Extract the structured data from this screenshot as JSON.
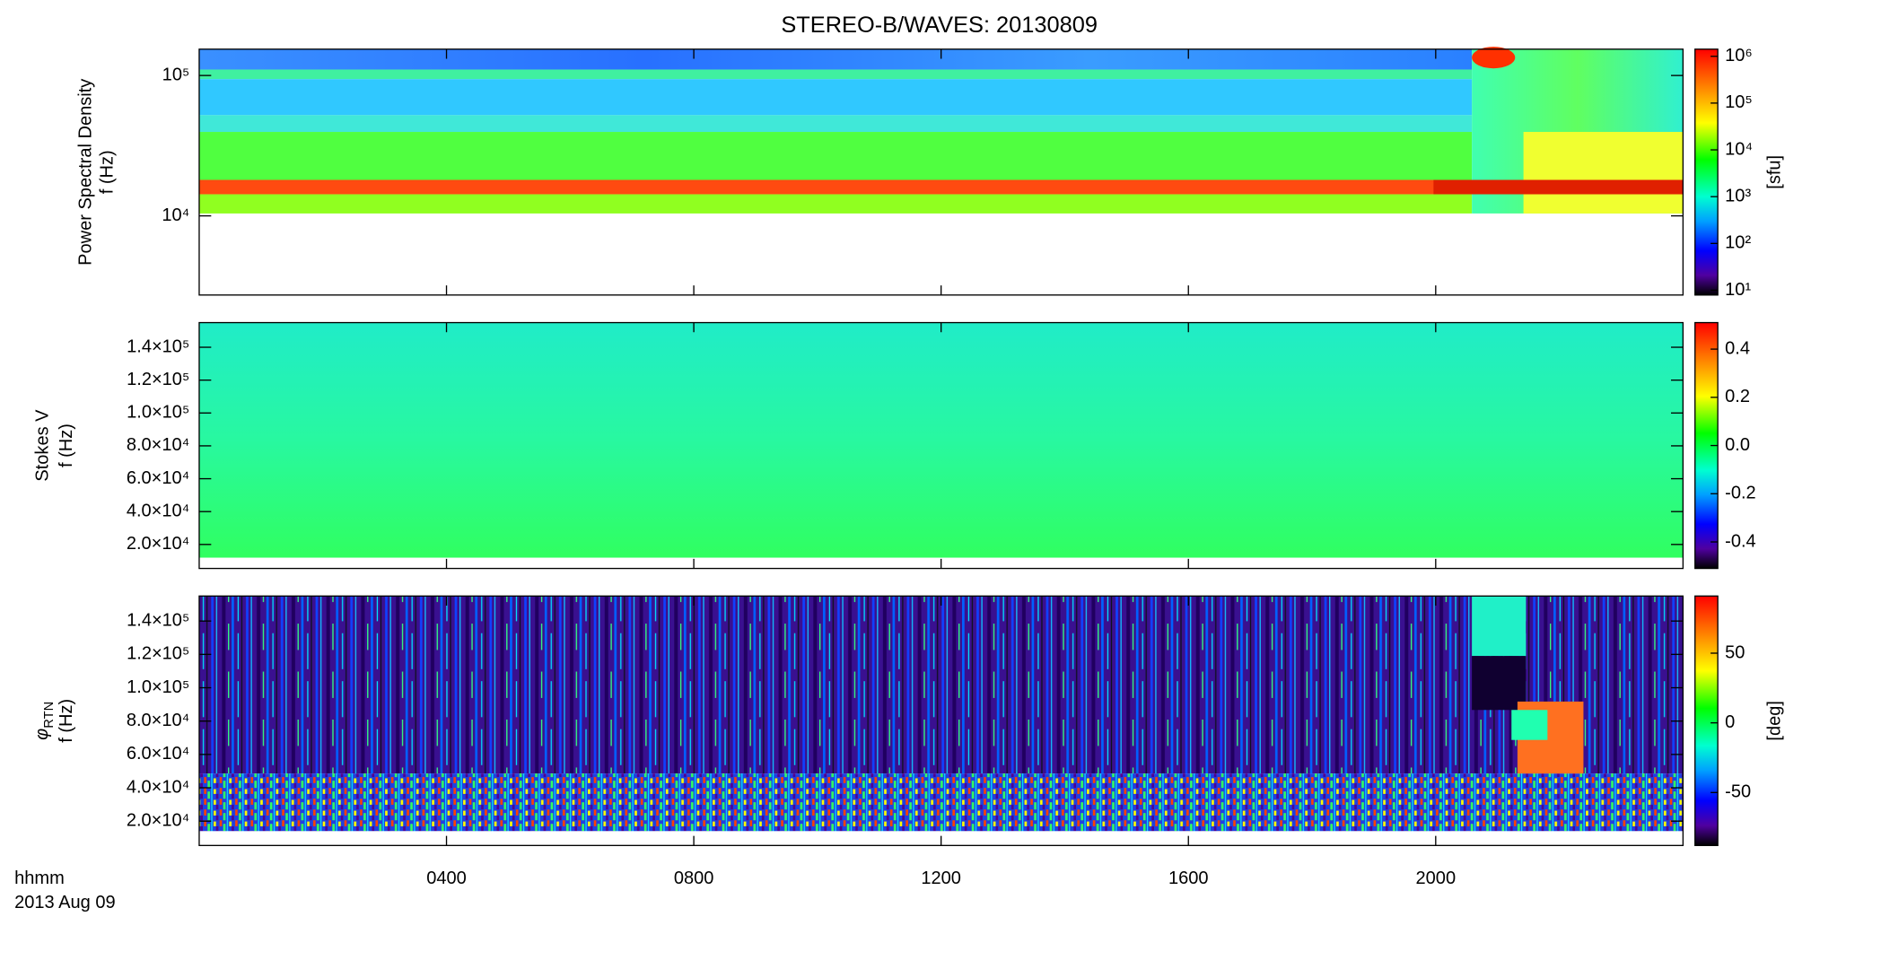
{
  "title": "STEREO-B/WAVES: 20130809",
  "x_label": "hhmm",
  "date_label": "2013 Aug 09",
  "xlim": [
    0,
    24
  ],
  "xticks": [
    {
      "value": 4,
      "label": "0400"
    },
    {
      "value": 8,
      "label": "0800"
    },
    {
      "value": 12,
      "label": "1200"
    },
    {
      "value": 16,
      "label": "1600"
    },
    {
      "value": 20,
      "label": "2000"
    }
  ],
  "chart_data": [
    {
      "type": "heatmap",
      "y_label": [
        "Power Spectral Density",
        "f (Hz)"
      ],
      "ylog": true,
      "ylim": [
        2730,
        154000
      ],
      "yticks": [
        {
          "value": 10000,
          "label": "10⁴"
        },
        {
          "value": 100000,
          "label": "10⁵"
        }
      ],
      "clog": true,
      "clim": [
        7.9,
        1420000
      ],
      "cticks": [
        {
          "value": 10,
          "label": "10¹"
        },
        {
          "value": 100,
          "label": "10²"
        },
        {
          "value": 1000,
          "label": "10³"
        },
        {
          "value": 10000,
          "label": "10⁴"
        },
        {
          "value": 100000,
          "label": "10⁵"
        },
        {
          "value": 1000000,
          "label": "10⁶"
        }
      ],
      "c_label": "[sfu]"
    },
    {
      "type": "heatmap",
      "y_label": [
        "Stokes V",
        "f (Hz)"
      ],
      "ylog": false,
      "ylim": [
        5400,
        155000
      ],
      "yticks": [
        {
          "value": 20000,
          "label": "2.0×10⁴"
        },
        {
          "value": 40000,
          "label": "4.0×10⁴"
        },
        {
          "value": 60000,
          "label": "6.0×10⁴"
        },
        {
          "value": 80000,
          "label": "8.0×10⁴"
        },
        {
          "value": 100000,
          "label": "1.0×10⁵"
        },
        {
          "value": 120000,
          "label": "1.2×10⁵"
        },
        {
          "value": 140000,
          "label": "1.4×10⁵"
        }
      ],
      "clog": false,
      "clim": [
        -0.51,
        0.51
      ],
      "cticks": [
        {
          "value": -0.4,
          "label": "-0.4"
        },
        {
          "value": -0.2,
          "label": "-0.2"
        },
        {
          "value": 0,
          "label": "0.0"
        },
        {
          "value": 0.2,
          "label": "0.2"
        },
        {
          "value": 0.4,
          "label": "0.4"
        }
      ]
    },
    {
      "type": "heatmap",
      "y_label_symbol": "φ",
      "y_label_sub": "RTN",
      "y_label": [
        "f (Hz)"
      ],
      "ylog": false,
      "ylim": [
        5400,
        155000
      ],
      "yticks": [
        {
          "value": 20000,
          "label": "2.0×10⁴"
        },
        {
          "value": 40000,
          "label": "4.0×10⁴"
        },
        {
          "value": 60000,
          "label": "6.0×10⁴"
        },
        {
          "value": 80000,
          "label": "8.0×10⁴"
        },
        {
          "value": 100000,
          "label": "1.0×10⁵"
        },
        {
          "value": 120000,
          "label": "1.2×10⁵"
        },
        {
          "value": 140000,
          "label": "1.4×10⁵"
        }
      ],
      "clog": false,
      "clim": [
        -88,
        91
      ],
      "cticks": [
        -50,
        0,
        50
      ],
      "c_label": "[deg]"
    }
  ]
}
